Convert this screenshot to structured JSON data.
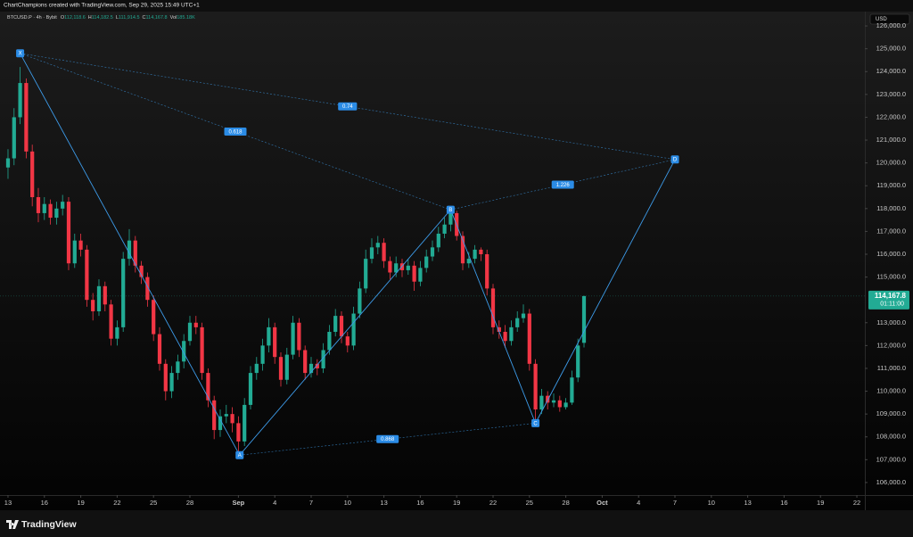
{
  "chart_data": {
    "type": "candlestick",
    "attribution": "ChartChampions created with TradingView.com, Sep 29, 2025 15:49 UTC+1",
    "symbol": "BTCUSD.P · 4h · Bybit",
    "header_stats": [
      {
        "key": "O",
        "text": "112,118.6"
      },
      {
        "key": "H",
        "text": "114,182.5"
      },
      {
        "key": "L",
        "text": "111,914.5"
      },
      {
        "key": "C",
        "text": "114,167.8"
      },
      {
        "key": "Vol",
        "text": "185.18K"
      }
    ],
    "currency": "USD",
    "last_price_label": "114,167.8",
    "countdown": "01:11:00",
    "brand": "TradingView",
    "up_color": "#22ab94",
    "down_color": "#f23645",
    "grid": false,
    "xlim": [
      -0.66,
      70.66
    ],
    "ylim": [
      105450,
      126550
    ],
    "xticks": [
      {
        "value": 0,
        "label": "13"
      },
      {
        "value": 3,
        "label": "16"
      },
      {
        "value": 6,
        "label": "19"
      },
      {
        "value": 9,
        "label": "22"
      },
      {
        "value": 12,
        "label": "25"
      },
      {
        "value": 15,
        "label": "28"
      },
      {
        "value": 19,
        "label": "Sep"
      },
      {
        "value": 22,
        "label": "4"
      },
      {
        "value": 25,
        "label": "7"
      },
      {
        "value": 28,
        "label": "10"
      },
      {
        "value": 31,
        "label": "13"
      },
      {
        "value": 34,
        "label": "16"
      },
      {
        "value": 37,
        "label": "19"
      },
      {
        "value": 40,
        "label": "22"
      },
      {
        "value": 43,
        "label": "25"
      },
      {
        "value": 46,
        "label": "28"
      },
      {
        "value": 49,
        "label": "Oct"
      },
      {
        "value": 52,
        "label": "4"
      },
      {
        "value": 55,
        "label": "7"
      },
      {
        "value": 58,
        "label": "10"
      },
      {
        "value": 61,
        "label": "13"
      },
      {
        "value": 64,
        "label": "16"
      },
      {
        "value": 67,
        "label": "19"
      },
      {
        "value": 70,
        "label": "22"
      }
    ],
    "yticks": [
      {
        "value": 106000,
        "label": "106,000.0"
      },
      {
        "value": 107000,
        "label": "107,000.0"
      },
      {
        "value": 108000,
        "label": "108,000.0"
      },
      {
        "value": 109000,
        "label": "109,000.0"
      },
      {
        "value": 110000,
        "label": "110,000.0"
      },
      {
        "value": 111000,
        "label": "111,000.0"
      },
      {
        "value": 112000,
        "label": "112,000.0"
      },
      {
        "value": 113000,
        "label": "113,000.0"
      },
      {
        "value": 115000,
        "label": "115,000.0"
      },
      {
        "value": 116000,
        "label": "116,000.0"
      },
      {
        "value": 117000,
        "label": "117,000.0"
      },
      {
        "value": 118000,
        "label": "118,000.0"
      },
      {
        "value": 119000,
        "label": "119,000.0"
      },
      {
        "value": 120000,
        "label": "120,000.0"
      },
      {
        "value": 121000,
        "label": "121,000.0"
      },
      {
        "value": 122000,
        "label": "122,000.0"
      },
      {
        "value": 123000,
        "label": "123,000.0"
      },
      {
        "value": 124000,
        "label": "124,000.0"
      },
      {
        "value": 125000,
        "label": "125,000.0"
      },
      {
        "value": 126000,
        "label": "126,000.0"
      }
    ],
    "x": [
      0,
      0.5,
      1,
      1.5,
      2,
      2.5,
      3,
      3.5,
      4,
      4.5,
      5,
      5.5,
      6,
      6.5,
      7,
      7.5,
      8,
      8.5,
      9,
      9.5,
      10,
      10.5,
      11,
      11.5,
      12,
      12.5,
      13,
      13.5,
      14,
      14.5,
      15,
      15.5,
      16,
      16.5,
      17,
      17.5,
      18,
      18.5,
      19,
      19.5,
      20,
      20.5,
      21,
      21.5,
      22,
      22.5,
      23,
      23.5,
      24,
      24.5,
      25,
      25.5,
      26,
      26.5,
      27,
      27.5,
      28,
      28.5,
      29,
      29.5,
      30,
      30.5,
      31,
      31.5,
      32,
      32.5,
      33,
      33.5,
      34,
      34.5,
      35,
      35.5,
      36,
      36.5,
      37,
      37.5,
      38,
      38.5,
      39,
      39.5,
      40,
      40.5,
      41,
      41.5,
      42,
      42.5,
      43,
      43.5,
      44,
      44.5,
      45,
      45.5,
      46,
      46.5,
      47,
      47.5
    ],
    "open": [
      119800,
      120200,
      122000,
      123500,
      120500,
      118500,
      117800,
      118200,
      117600,
      118000,
      118300,
      115600,
      116600,
      116200,
      114000,
      113500,
      114600,
      113800,
      112300,
      112800,
      115800,
      116600,
      115500,
      115000,
      114000,
      112500,
      111200,
      110000,
      110800,
      111300,
      112200,
      113000,
      112800,
      110800,
      109600,
      108300,
      108900,
      109000,
      108600,
      107800,
      109400,
      110800,
      111200,
      112000,
      112800,
      111500,
      110500,
      111600,
      113000,
      111800,
      110800,
      111200,
      111000,
      111800,
      112600,
      113300,
      112400,
      112000,
      113400,
      114500,
      115800,
      116300,
      116500,
      115700,
      115200,
      115600,
      115300,
      115500,
      114800,
      115400,
      115900,
      116300,
      116900,
      117300,
      117800,
      116800,
      115600,
      115800,
      116200,
      116000,
      114500,
      112800,
      112600,
      112200,
      112800,
      113200,
      113400,
      111200,
      109200,
      109800,
      109500,
      109600,
      109300,
      109500,
      110600,
      112118.6
    ],
    "high": [
      120600,
      122400,
      124200,
      123700,
      120800,
      118900,
      118500,
      118400,
      118300,
      118600,
      118500,
      116900,
      116900,
      116400,
      114300,
      114900,
      114800,
      114000,
      113100,
      116100,
      117100,
      116800,
      115700,
      115200,
      114200,
      112800,
      111400,
      111100,
      111600,
      112500,
      113300,
      113300,
      113000,
      111000,
      109800,
      109200,
      109400,
      109300,
      108900,
      109700,
      111100,
      111500,
      112300,
      113200,
      113000,
      111700,
      111900,
      113300,
      113200,
      112000,
      111500,
      111400,
      112100,
      112900,
      113600,
      113500,
      112600,
      113700,
      114800,
      116200,
      116700,
      116800,
      116700,
      115900,
      115900,
      115800,
      115800,
      115700,
      115700,
      116200,
      116600,
      117200,
      117600,
      118000,
      117900,
      117000,
      116100,
      116400,
      116300,
      116200,
      114700,
      113100,
      112900,
      113100,
      113500,
      113800,
      113600,
      111400,
      110100,
      110000,
      109900,
      109800,
      109700,
      110900,
      112300,
      114182.5
    ],
    "low": [
      119300,
      119900,
      121700,
      120200,
      118100,
      117400,
      117500,
      117300,
      117300,
      117700,
      115300,
      115400,
      115900,
      113700,
      113100,
      113300,
      113500,
      112000,
      112000,
      112600,
      115500,
      115200,
      114700,
      113700,
      112200,
      110900,
      109600,
      109700,
      110500,
      111000,
      112000,
      112500,
      110500,
      109300,
      107900,
      108000,
      108600,
      108200,
      107300,
      107600,
      109200,
      110500,
      110900,
      111700,
      111200,
      110200,
      110300,
      111400,
      111500,
      110500,
      110600,
      110700,
      110800,
      111600,
      112400,
      112100,
      111700,
      111800,
      113200,
      114300,
      115600,
      116000,
      115400,
      114900,
      115000,
      115000,
      115100,
      114400,
      114600,
      115200,
      115700,
      116100,
      116700,
      117000,
      116600,
      115300,
      115400,
      115600,
      115700,
      114200,
      112500,
      112300,
      111900,
      112000,
      112600,
      113000,
      110900,
      108700,
      109000,
      109200,
      109300,
      109100,
      109200,
      109400,
      110400,
      111914.5
    ],
    "close": [
      120200,
      122000,
      123500,
      120500,
      118500,
      117800,
      118200,
      117600,
      118000,
      118300,
      115600,
      116600,
      116200,
      114000,
      113500,
      114600,
      113800,
      112300,
      112800,
      115800,
      116600,
      115500,
      115000,
      114000,
      112500,
      111200,
      110000,
      110800,
      111300,
      112200,
      113000,
      112800,
      110800,
      109600,
      108300,
      108900,
      109000,
      108600,
      107800,
      109400,
      110800,
      111200,
      112000,
      112800,
      111500,
      110500,
      111600,
      113000,
      111800,
      110800,
      111200,
      111000,
      111800,
      112600,
      113300,
      112400,
      112000,
      113400,
      114500,
      115800,
      116300,
      116500,
      115700,
      115200,
      115600,
      115300,
      115500,
      114800,
      115400,
      115900,
      116300,
      116900,
      117300,
      117800,
      116800,
      115600,
      115800,
      116200,
      116000,
      114500,
      112800,
      112600,
      112200,
      112800,
      113200,
      113400,
      111200,
      109200,
      109800,
      109500,
      109600,
      109300,
      109500,
      110600,
      112000,
      114167.8
    ],
    "pattern": {
      "color": "#3d9be9",
      "points": [
        {
          "label": "X",
          "x": 1,
          "y": 124800
        },
        {
          "label": "A",
          "x": 19.1,
          "y": 107200
        },
        {
          "label": "B",
          "x": 36.5,
          "y": 117950
        },
        {
          "label": "C",
          "x": 43.5,
          "y": 108600
        },
        {
          "label": "D",
          "x": 55,
          "y": 120150
        }
      ],
      "ratios": [
        {
          "label": "0.618",
          "between": [
            "X",
            "B"
          ]
        },
        {
          "label": "0.74",
          "between": [
            "X",
            "D"
          ]
        },
        {
          "label": "1.226",
          "between": [
            "B",
            "D"
          ]
        },
        {
          "label": "0.868",
          "between": [
            "A",
            "C"
          ]
        }
      ]
    }
  }
}
